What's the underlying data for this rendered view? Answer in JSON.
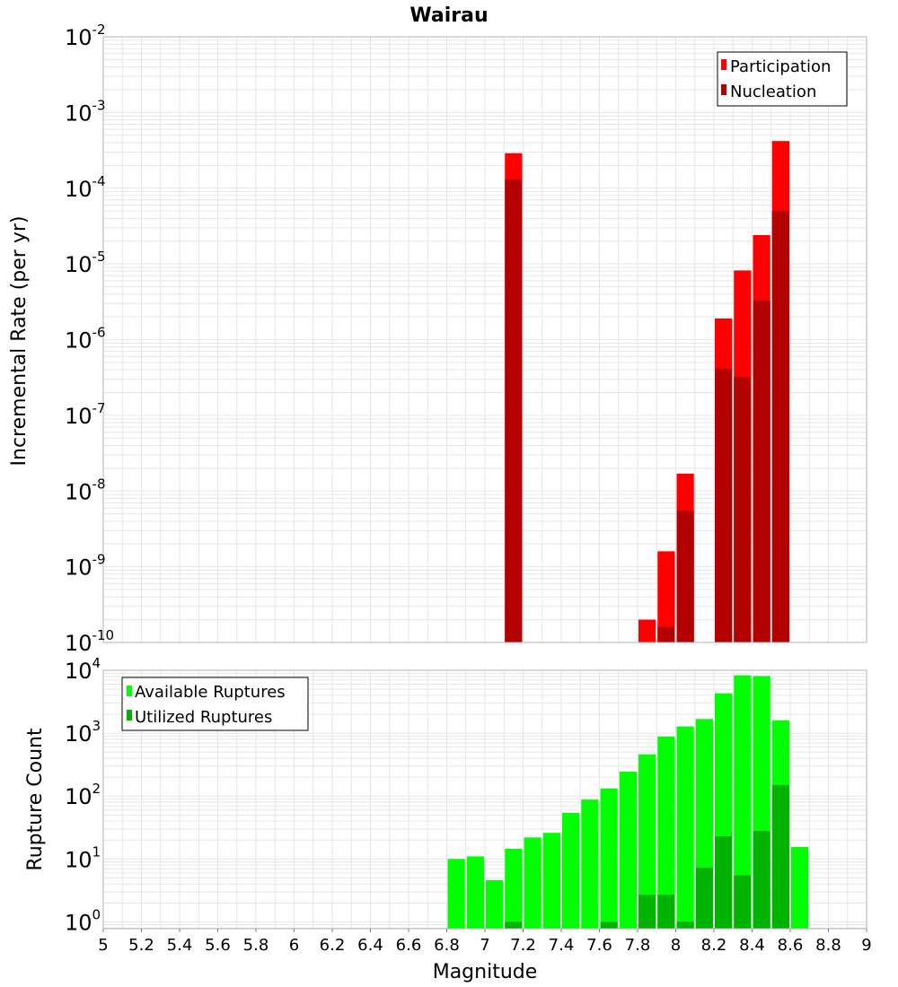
{
  "title": "Wairau",
  "colors": {
    "participation": "#ff0000",
    "nucleation": "#b30000",
    "available": "#00ff00",
    "utilized": "#00b300",
    "grid": "#e6e6e6",
    "frame": "#b3b3b3"
  },
  "chart_data": [
    {
      "type": "bar",
      "name": "rates",
      "ylabel": "Incremental Rate (per yr)",
      "yscale": "log",
      "ylim": [
        1e-10,
        0.01
      ],
      "xlim": [
        5,
        9
      ],
      "bin_width": 0.1,
      "grid": true,
      "legend_position": "top-right",
      "yticks": [
        {
          "base": "10",
          "exp": "-10",
          "value": 1e-10
        },
        {
          "base": "10",
          "exp": "-9",
          "value": 1e-09
        },
        {
          "base": "10",
          "exp": "-8",
          "value": 1e-08
        },
        {
          "base": "10",
          "exp": "-7",
          "value": 1e-07
        },
        {
          "base": "10",
          "exp": "-6",
          "value": 1e-06
        },
        {
          "base": "10",
          "exp": "-5",
          "value": 1e-05
        },
        {
          "base": "10",
          "exp": "-4",
          "value": 0.0001
        },
        {
          "base": "10",
          "exp": "-3",
          "value": 0.001
        },
        {
          "base": "10",
          "exp": "-2",
          "value": 0.01
        }
      ],
      "series": [
        {
          "name": "Participation",
          "color": "#ff0000",
          "points": [
            {
              "x": 7.15,
              "y": 0.00029
            },
            {
              "x": 7.85,
              "y": 2e-10
            },
            {
              "x": 7.95,
              "y": 1.6e-09
            },
            {
              "x": 8.05,
              "y": 1.7e-08
            },
            {
              "x": 8.25,
              "y": 1.9e-06
            },
            {
              "x": 8.35,
              "y": 8.2e-06
            },
            {
              "x": 8.45,
              "y": 2.4e-05
            },
            {
              "x": 8.55,
              "y": 0.00042
            }
          ]
        },
        {
          "name": "Nucleation",
          "color": "#b30000",
          "points": [
            {
              "x": 7.15,
              "y": 0.00013
            },
            {
              "x": 7.95,
              "y": 1.6e-10
            },
            {
              "x": 8.05,
              "y": 5.5e-09
            },
            {
              "x": 8.25,
              "y": 4.1e-07
            },
            {
              "x": 8.35,
              "y": 3.2e-07
            },
            {
              "x": 8.45,
              "y": 3.3e-06
            },
            {
              "x": 8.55,
              "y": 5e-05
            }
          ]
        }
      ]
    },
    {
      "type": "bar",
      "name": "counts",
      "xlabel": "Magnitude",
      "ylabel": "Rupture Count",
      "yscale": "log",
      "ylim": [
        0.78,
        10000
      ],
      "xlim": [
        5,
        9
      ],
      "bin_width": 0.1,
      "grid": true,
      "legend_position": "top-left",
      "yticks": [
        {
          "base": "10",
          "exp": "0",
          "value": 1
        },
        {
          "base": "10",
          "exp": "1",
          "value": 10
        },
        {
          "base": "10",
          "exp": "2",
          "value": 100
        },
        {
          "base": "10",
          "exp": "3",
          "value": 1000
        },
        {
          "base": "10",
          "exp": "4",
          "value": 10000
        }
      ],
      "xticks": [
        "5",
        "5.2",
        "5.4",
        "5.6",
        "5.8",
        "6",
        "6.2",
        "6.4",
        "6.6",
        "6.8",
        "7",
        "7.2",
        "7.4",
        "7.6",
        "7.8",
        "8",
        "8.2",
        "8.4",
        "8.6",
        "8.8",
        "9"
      ],
      "series": [
        {
          "name": "Available Ruptures",
          "color": "#00ff00",
          "points": [
            {
              "x": 6.85,
              "y": 10
            },
            {
              "x": 6.95,
              "y": 11
            },
            {
              "x": 7.05,
              "y": 4.6
            },
            {
              "x": 7.15,
              "y": 14.5
            },
            {
              "x": 7.25,
              "y": 22
            },
            {
              "x": 7.35,
              "y": 26
            },
            {
              "x": 7.45,
              "y": 54
            },
            {
              "x": 7.55,
              "y": 88
            },
            {
              "x": 7.65,
              "y": 132
            },
            {
              "x": 7.75,
              "y": 245
            },
            {
              "x": 7.85,
              "y": 460
            },
            {
              "x": 7.95,
              "y": 880
            },
            {
              "x": 8.05,
              "y": 1280
            },
            {
              "x": 8.15,
              "y": 1680
            },
            {
              "x": 8.25,
              "y": 4300
            },
            {
              "x": 8.35,
              "y": 8300
            },
            {
              "x": 8.45,
              "y": 8100
            },
            {
              "x": 8.55,
              "y": 1600
            },
            {
              "x": 8.65,
              "y": 15.5
            }
          ]
        },
        {
          "name": "Utilized Ruptures",
          "color": "#00b300",
          "points": [
            {
              "x": 7.15,
              "y": 1
            },
            {
              "x": 7.65,
              "y": 1
            },
            {
              "x": 7.85,
              "y": 2.7
            },
            {
              "x": 7.95,
              "y": 2.7
            },
            {
              "x": 8.05,
              "y": 1
            },
            {
              "x": 8.15,
              "y": 7.3
            },
            {
              "x": 8.25,
              "y": 23
            },
            {
              "x": 8.35,
              "y": 5.5
            },
            {
              "x": 8.45,
              "y": 28
            },
            {
              "x": 8.55,
              "y": 150
            }
          ]
        }
      ]
    }
  ]
}
